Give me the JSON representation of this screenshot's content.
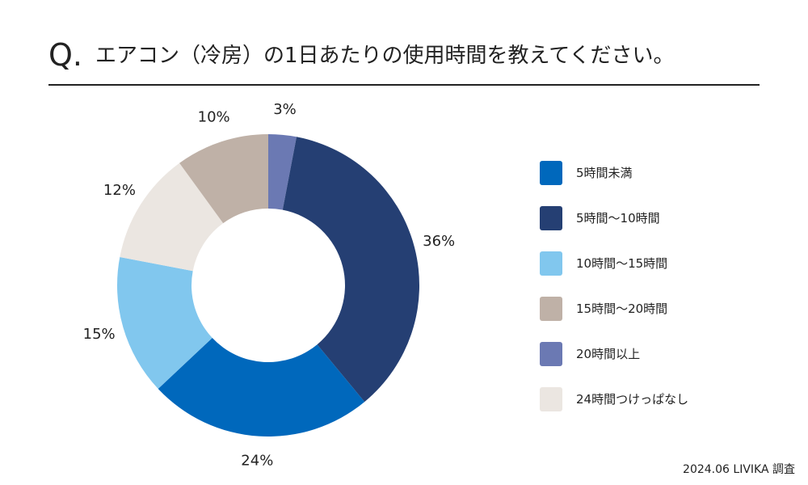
{
  "header": {
    "q_mark": "Q.",
    "title": "エアコン（冷房）の1日あたりの使用時間を教えてください。"
  },
  "chart_data": {
    "type": "pie",
    "donut": true,
    "categories": [
      "5時間未満",
      "5時間〜10時間",
      "10時間〜15時間",
      "15時間〜20時間",
      "20時間以上",
      "24時間つけっぱなし"
    ],
    "values": [
      24,
      36,
      15,
      10,
      3,
      12
    ],
    "labels": [
      "24%",
      "36%",
      "15%",
      "10%",
      "3%",
      "12%"
    ],
    "colors": [
      "#0068bc",
      "#253f73",
      "#81c7ee",
      "#bfb1a7",
      "#6b79b3",
      "#ebe6e1"
    ],
    "draw_order": [
      4,
      1,
      0,
      2,
      5,
      3
    ],
    "legend_placement": "right"
  },
  "footnote": "2024.06 LIVIKA 調査"
}
